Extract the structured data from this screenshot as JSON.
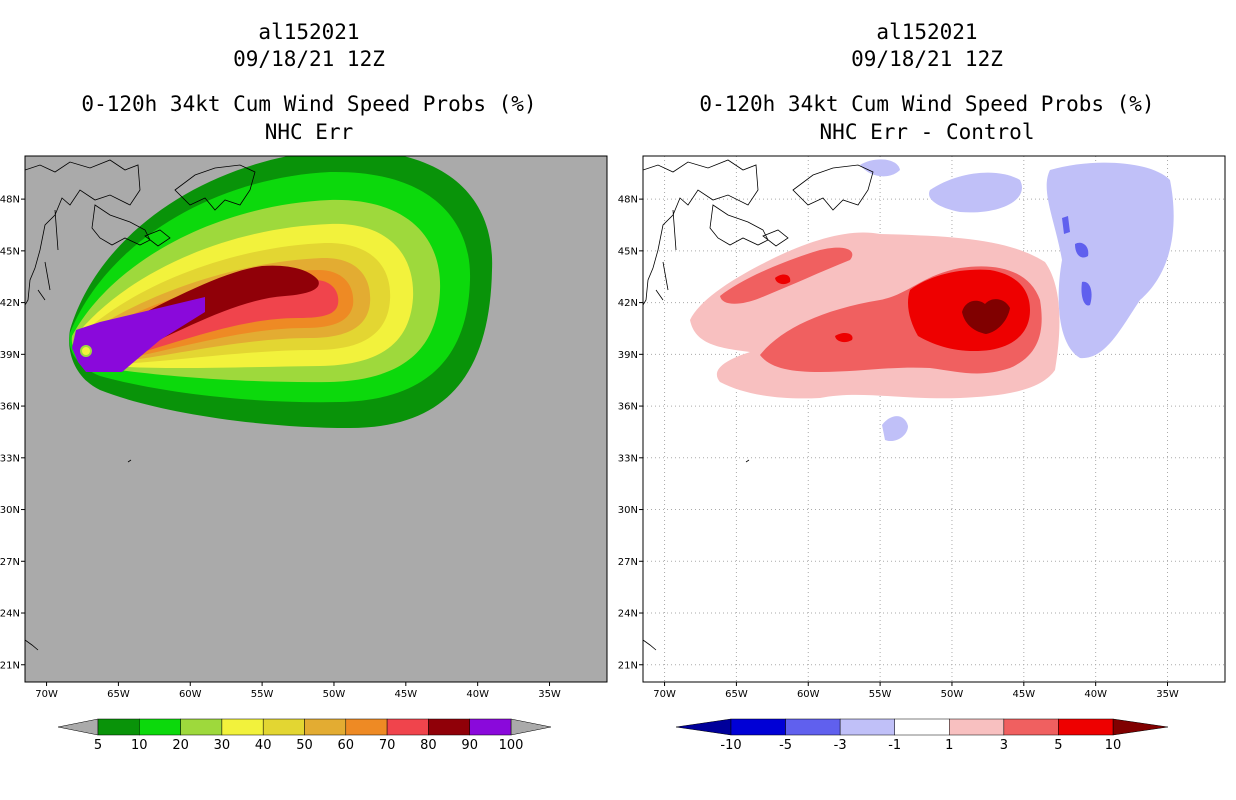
{
  "chart_data": [
    {
      "type": "heatmap",
      "storm_id": "al152021",
      "valid_time": "09/18/21 12Z",
      "title": "0-120h 34kt Cum Wind Speed Probs (%)",
      "subtitle": "NHC Err",
      "x_ticks": [
        "70W",
        "65W",
        "60W",
        "55W",
        "50W",
        "45W",
        "40W",
        "35W"
      ],
      "y_ticks": [
        "48N",
        "45N",
        "42N",
        "39N",
        "36N",
        "33N",
        "30N",
        "27N",
        "24N",
        "21N"
      ],
      "xlim": [
        -71.5,
        -31
      ],
      "ylim": [
        20,
        50.5
      ],
      "colorbar": {
        "labels": [
          "5",
          "10",
          "20",
          "30",
          "40",
          "50",
          "60",
          "70",
          "80",
          "90",
          "100"
        ],
        "colors": [
          "#099309",
          "#0cd90c",
          "#9ed93c",
          "#f2f23c",
          "#e3d632",
          "#e3ac32",
          "#ee8a24",
          "#f0444c",
          "#900008",
          "#8a09db"
        ],
        "under_color": "#aaaaaa",
        "over_color": "#aaaaaa"
      },
      "background_color": "#aaaaaa"
    },
    {
      "type": "heatmap",
      "storm_id": "al152021",
      "valid_time": "09/18/21 12Z",
      "title": "0-120h 34kt Cum Wind Speed Probs (%)",
      "subtitle": "NHC Err - Control",
      "x_ticks": [
        "70W",
        "65W",
        "60W",
        "55W",
        "50W",
        "45W",
        "40W",
        "35W"
      ],
      "y_ticks": [
        "48N",
        "45N",
        "42N",
        "39N",
        "36N",
        "33N",
        "30N",
        "27N",
        "24N",
        "21N"
      ],
      "xlim": [
        -71.5,
        -31
      ],
      "ylim": [
        20,
        50.5
      ],
      "colorbar": {
        "labels": [
          "-10",
          "-5",
          "-3",
          "-1",
          "1",
          "3",
          "5",
          "10"
        ],
        "colors": [
          "#0000d6",
          "#6060ee",
          "#c0c0f8",
          "#ffffff",
          "#f8c0c0",
          "#f06060",
          "#ee0000"
        ],
        "under_color": "#00009a",
        "over_color": "#800000"
      },
      "background_color": "#ffffff"
    }
  ]
}
